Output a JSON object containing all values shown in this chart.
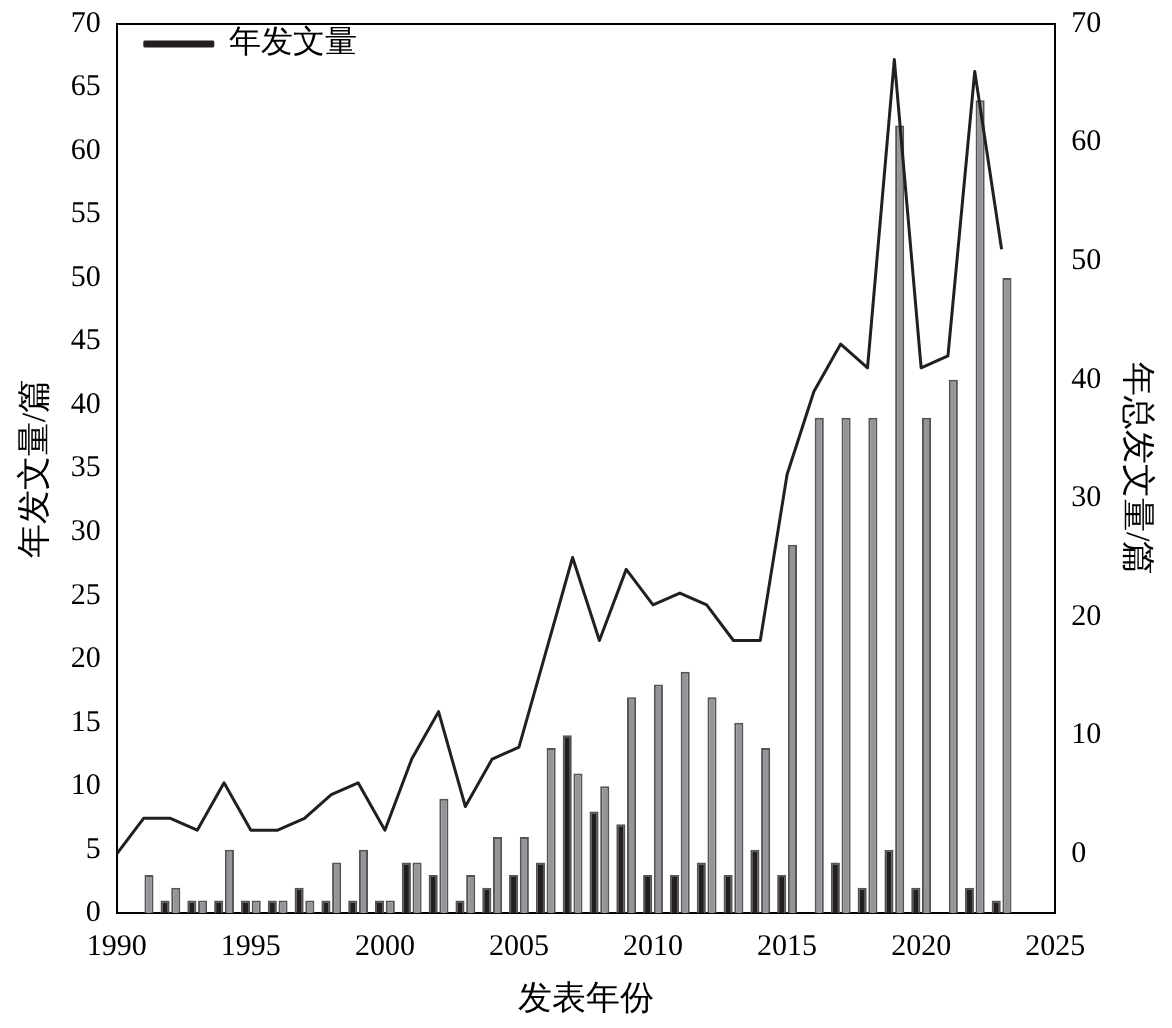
{
  "chart_data": {
    "type": "bar",
    "xlabel": "发表年份",
    "ylabel": "年发文量/篇",
    "y2label": "年总发文量/篇",
    "x": [
      1990,
      1991,
      1992,
      1993,
      1994,
      1995,
      1996,
      1997,
      1998,
      1999,
      2000,
      2001,
      2002,
      2003,
      2004,
      2005,
      2006,
      2007,
      2008,
      2009,
      2010,
      2011,
      2012,
      2013,
      2014,
      2015,
      2016,
      2017,
      2018,
      2019,
      2020,
      2021,
      2022,
      2023
    ],
    "series": [
      {
        "color": "#231f20",
        "values": [
          0,
          0,
          1,
          1,
          1,
          1,
          1,
          2,
          1,
          1,
          1,
          4,
          3,
          1,
          2,
          3,
          4,
          14,
          8,
          7,
          3,
          3,
          4,
          3,
          5,
          3,
          0,
          4,
          2,
          5,
          2,
          0,
          2,
          1
        ]
      },
      {
        "color": "#939598",
        "values": [
          0,
          3,
          2,
          1,
          5,
          1,
          1,
          1,
          4,
          5,
          1,
          4,
          9,
          3,
          6,
          6,
          13,
          11,
          10,
          17,
          18,
          19,
          17,
          15,
          13,
          29,
          39,
          39,
          39,
          62,
          39,
          42,
          64,
          50
        ]
      },
      {
        "name": "年发文量",
        "type": "line",
        "axis": "y2",
        "color": "#231f20",
        "values": [
          0,
          3,
          3,
          2,
          6,
          2,
          2,
          3,
          5,
          6,
          2,
          8,
          12,
          4,
          8,
          9,
          17,
          25,
          18,
          24,
          21,
          22,
          21,
          18,
          18,
          32,
          39,
          43,
          41,
          67,
          41,
          42,
          66,
          51
        ]
      }
    ],
    "xlim": [
      1990,
      2025
    ],
    "xticks": [
      1990,
      1995,
      2000,
      2005,
      2010,
      2015,
      2020,
      2025
    ],
    "ylim": [
      0,
      70
    ],
    "yticks": [
      0,
      5,
      10,
      15,
      20,
      25,
      30,
      35,
      40,
      45,
      50,
      55,
      60,
      65,
      70
    ],
    "y2lim": [
      -5,
      70
    ],
    "y2ticks": [
      0,
      10,
      20,
      30,
      40,
      50,
      60,
      70
    ],
    "grid": false,
    "legend": "top left",
    "marker": "none",
    "line_style": "solid"
  }
}
